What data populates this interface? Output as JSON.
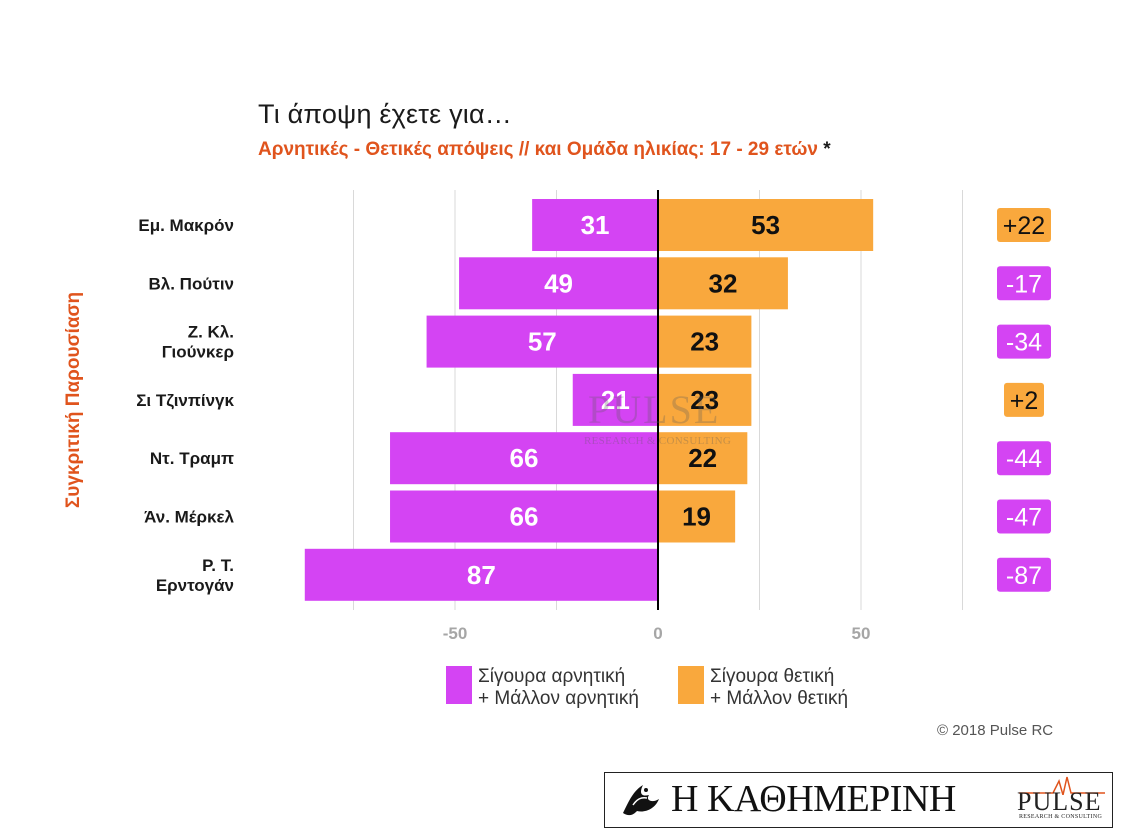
{
  "chart_data": {
    "type": "bar",
    "orientation": "horizontal-diverging",
    "title": "Τι άποψη έχετε για…",
    "subtitle": "Αρνητικές - Θετικές απόψεις // και Ομάδα ηλικίας: 17 - 29 ετών",
    "subtitle_mark": "*",
    "ylabel": "Συγκριτική  Παρουσίαση",
    "categories": [
      "Εμ. Μακρόν",
      "Βλ. Πούτιν",
      "Ζ. Κλ. Γιούνκερ",
      "Σι Τζινπίνγκ",
      "Ντ. Τραμπ",
      "Άν. Μέρκελ",
      "Ρ. Τ. Ερντογάν"
    ],
    "category_lines": [
      [
        "Εμ. Μακρόν"
      ],
      [
        "Βλ. Πούτιν"
      ],
      [
        "Ζ. Κλ.",
        "Γιούνκερ"
      ],
      [
        "Σι Τζινπίνγκ"
      ],
      [
        "Ντ. Τραμπ"
      ],
      [
        "Άν. Μέρκελ"
      ],
      [
        "Ρ. Τ.",
        "Ερντογάν"
      ]
    ],
    "series": [
      {
        "name": "Σίγουρα αρνητική + Μάλλον αρνητική",
        "values": [
          31,
          49,
          57,
          21,
          66,
          66,
          87
        ],
        "color": "#d444f3"
      },
      {
        "name": "Σίγουρα θετική + Μάλλον θετική",
        "values": [
          53,
          32,
          23,
          23,
          22,
          19,
          0
        ],
        "color": "#f9a83d"
      }
    ],
    "net": [
      "+22",
      "-17",
      "-34",
      "+2",
      "-44",
      "-47",
      "-87"
    ],
    "net_sign": [
      "positive",
      "negative",
      "negative",
      "positive",
      "negative",
      "negative",
      "negative"
    ],
    "xlim": [
      -87,
      75
    ],
    "xticks": [
      -50,
      0,
      50
    ],
    "xtick_labels": [
      "-50",
      "0",
      "50"
    ],
    "grid": true,
    "legend_position": "bottom",
    "colors": {
      "negative": "#d444f3",
      "positive": "#f9a83d",
      "accent": "#e0541d",
      "grid": "#d9d9d9",
      "tick": "#a6a6a6"
    }
  },
  "legend": {
    "negative": "Σίγουρα αρνητική\n+ Μάλλον αρνητική",
    "positive": "Σίγουρα θετική\n+ Μάλλον θετική"
  },
  "copyright": "© 2018 Pulse RC",
  "logos": {
    "kathimerini": "Η ΚΑΘΗΜΕΡΙΝΗ",
    "pulse": "PULSE",
    "pulse_sub": "RESEARCH & CONSULTING"
  }
}
